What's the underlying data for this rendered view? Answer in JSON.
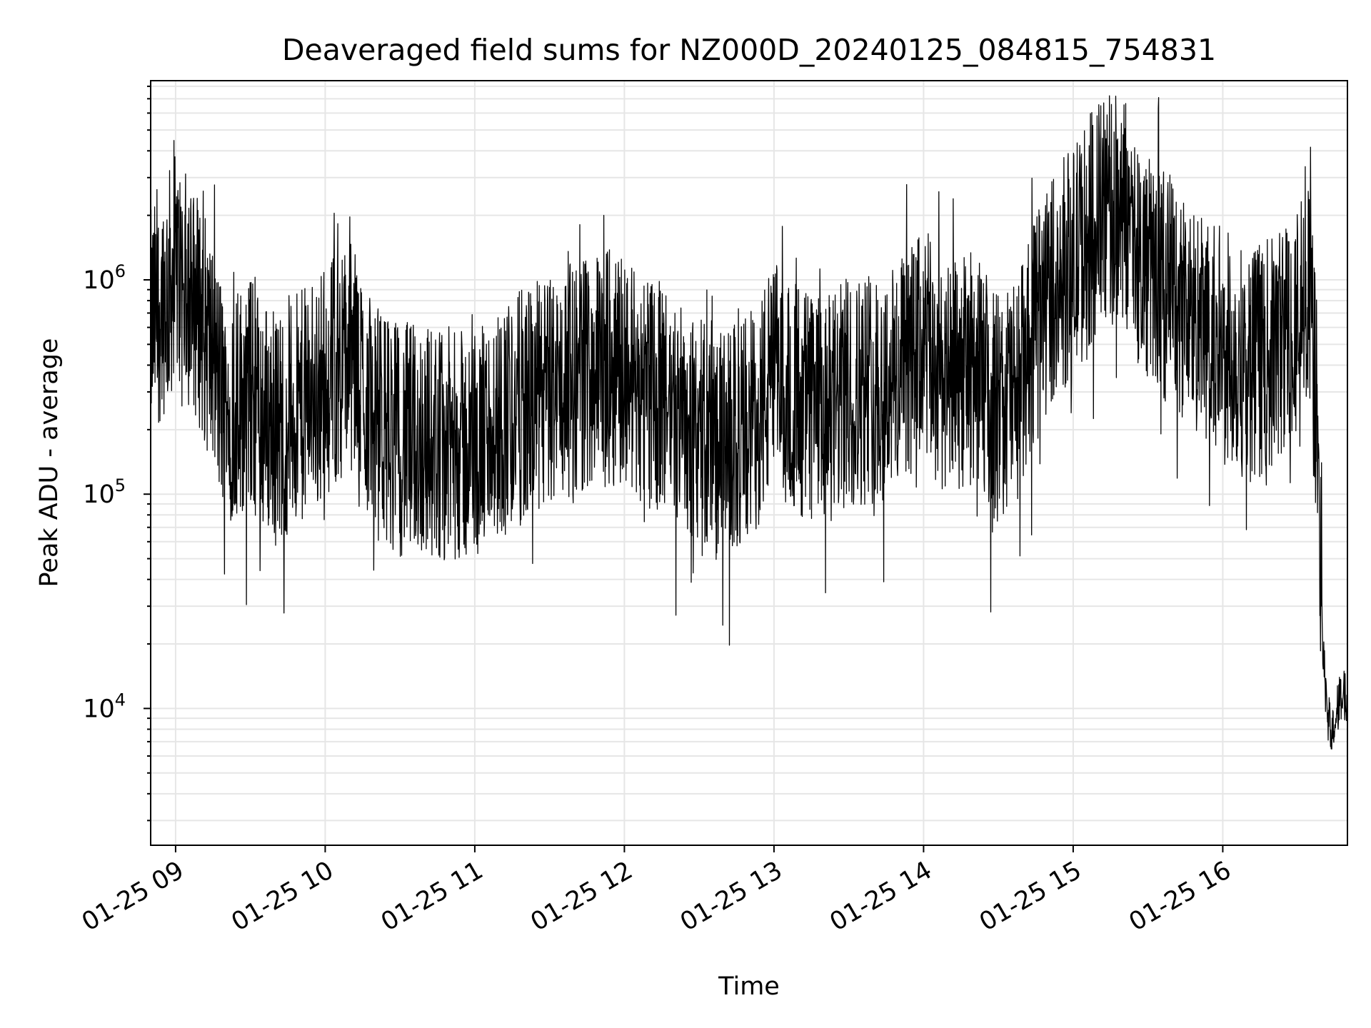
{
  "chart_data": {
    "type": "line",
    "title": "Deaveraged field sums for NZ000D_20240125_084815_754831",
    "xlabel": "Time",
    "ylabel": "Peak ADU - average",
    "yscale": "log",
    "xlim": [
      "2024-01-25 08:50",
      "2024-01-25 16:50"
    ],
    "ylim": [
      2300,
      8500000
    ],
    "x_ticks": [
      "01-25 09",
      "01-25 10",
      "01-25 11",
      "01-25 12",
      "01-25 13",
      "01-25 14",
      "01-25 15",
      "01-25 16"
    ],
    "y_ticks": [
      {
        "value": 10000,
        "base": "10",
        "exp": "4"
      },
      {
        "value": 100000,
        "base": "10",
        "exp": "5"
      },
      {
        "value": 1000000,
        "base": "10",
        "exp": "6"
      }
    ],
    "grid": true,
    "line_color": "#000000",
    "grid_color": "#e6e6e6",
    "series": [
      {
        "x": [
          "2024-01-25 08:50",
          "2024-01-25 09:00",
          "2024-01-25 09:10",
          "2024-01-25 09:20",
          "2024-01-25 09:30",
          "2024-01-25 09:40",
          "2024-01-25 09:50",
          "2024-01-25 10:00",
          "2024-01-25 10:10",
          "2024-01-25 10:20",
          "2024-01-25 10:30",
          "2024-01-25 10:40",
          "2024-01-25 10:50",
          "2024-01-25 11:00",
          "2024-01-25 11:10",
          "2024-01-25 11:20",
          "2024-01-25 11:30",
          "2024-01-25 11:40",
          "2024-01-25 11:50",
          "2024-01-25 12:00",
          "2024-01-25 12:10",
          "2024-01-25 12:20",
          "2024-01-25 12:30",
          "2024-01-25 12:40",
          "2024-01-25 12:50",
          "2024-01-25 13:00",
          "2024-01-25 13:10",
          "2024-01-25 13:20",
          "2024-01-25 13:30",
          "2024-01-25 13:40",
          "2024-01-25 13:50",
          "2024-01-25 14:00",
          "2024-01-25 14:10",
          "2024-01-25 14:20",
          "2024-01-25 14:30",
          "2024-01-25 14:40",
          "2024-01-25 14:50",
          "2024-01-25 15:00",
          "2024-01-25 15:10",
          "2024-01-25 15:20",
          "2024-01-25 15:30",
          "2024-01-25 15:40",
          "2024-01-25 15:50",
          "2024-01-25 16:00",
          "2024-01-25 16:10",
          "2024-01-25 16:20",
          "2024-01-25 16:30",
          "2024-01-25 16:35",
          "2024-01-25 16:38",
          "2024-01-25 16:40",
          "2024-01-25 16:42",
          "2024-01-25 16:44",
          "2024-01-25 16:46",
          "2024-01-25 16:48",
          "2024-01-25 16:50"
        ],
        "y": [
          600000,
          1100000,
          700000,
          250000,
          300000,
          200000,
          250000,
          350000,
          450000,
          220000,
          180000,
          180000,
          170000,
          160000,
          220000,
          260000,
          300000,
          350000,
          400000,
          380000,
          300000,
          250000,
          200000,
          160000,
          200000,
          350000,
          280000,
          230000,
          300000,
          320000,
          350000,
          500000,
          330000,
          400000,
          250000,
          350000,
          900000,
          1200000,
          2000000,
          2200000,
          1100000,
          900000,
          600000,
          500000,
          400000,
          450000,
          700000,
          800000,
          200000,
          20000,
          9000,
          8000,
          10000,
          12000,
          11000
        ]
      }
    ]
  }
}
